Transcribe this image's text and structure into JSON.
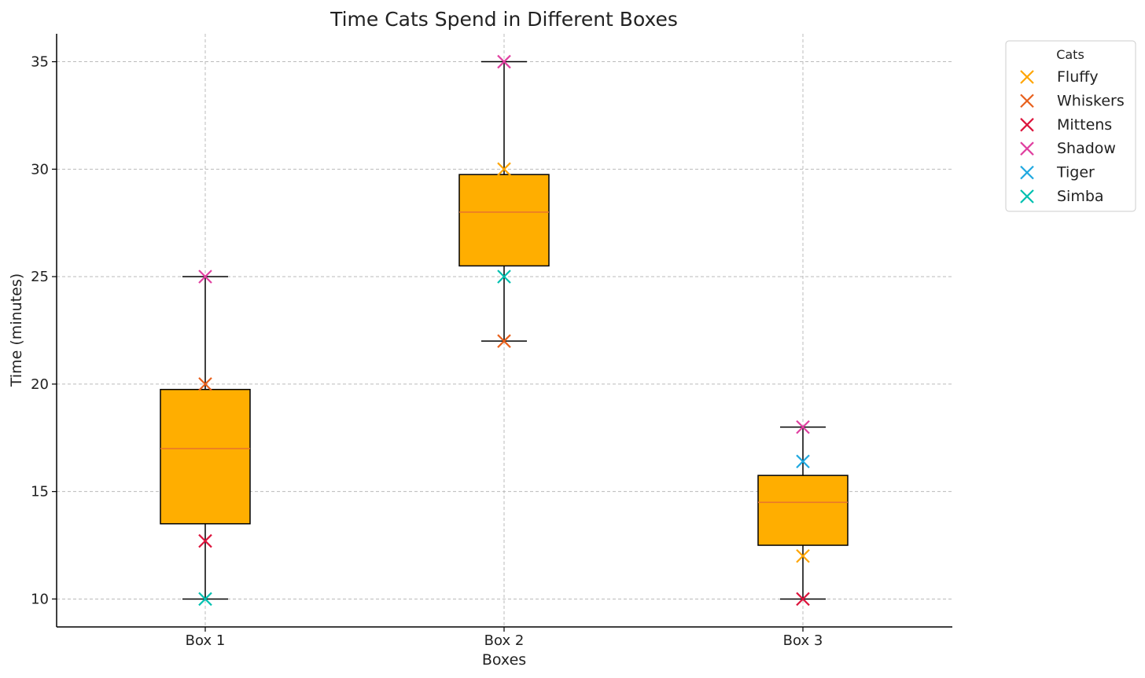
{
  "chart_data": {
    "type": "box",
    "title": "Time Cats Spend in Different Boxes",
    "xlabel": "Boxes",
    "ylabel": "Time (minutes)",
    "categories": [
      "Box 1",
      "Box 2",
      "Box 3"
    ],
    "ylim": [
      8.7,
      36.3
    ],
    "yticks": [
      10,
      15,
      20,
      25,
      30,
      35
    ],
    "grid": true,
    "legend": {
      "title": "Cats",
      "placement": "outside-top-right"
    },
    "box_color": "#ffae00",
    "median_color": "#e8742c",
    "boxes": [
      {
        "category": "Box 1",
        "whisker_low": 10,
        "q1": 13.5,
        "median": 17,
        "q3": 19.75,
        "whisker_high": 25
      },
      {
        "category": "Box 2",
        "whisker_low": 22,
        "q1": 25.5,
        "median": 28,
        "q3": 29.75,
        "whisker_high": 35
      },
      {
        "category": "Box 3",
        "whisker_low": 10,
        "q1": 12.5,
        "median": 14.5,
        "q3": 15.75,
        "whisker_high": 18
      }
    ],
    "series": [
      {
        "name": "Fluffy",
        "color": "#ffa500",
        "values": [
          null,
          30,
          12
        ]
      },
      {
        "name": "Whiskers",
        "color": "#e8601c",
        "values": [
          20,
          22,
          null
        ]
      },
      {
        "name": "Mittens",
        "color": "#dc143c",
        "values": [
          12.7,
          null,
          10
        ]
      },
      {
        "name": "Shadow",
        "color": "#e040a0",
        "values": [
          25,
          35,
          18
        ]
      },
      {
        "name": "Tiger",
        "color": "#1ea8e0",
        "values": [
          null,
          null,
          16.4
        ]
      },
      {
        "name": "Simba",
        "color": "#00c0b0",
        "values": [
          10,
          25,
          null
        ]
      }
    ]
  }
}
